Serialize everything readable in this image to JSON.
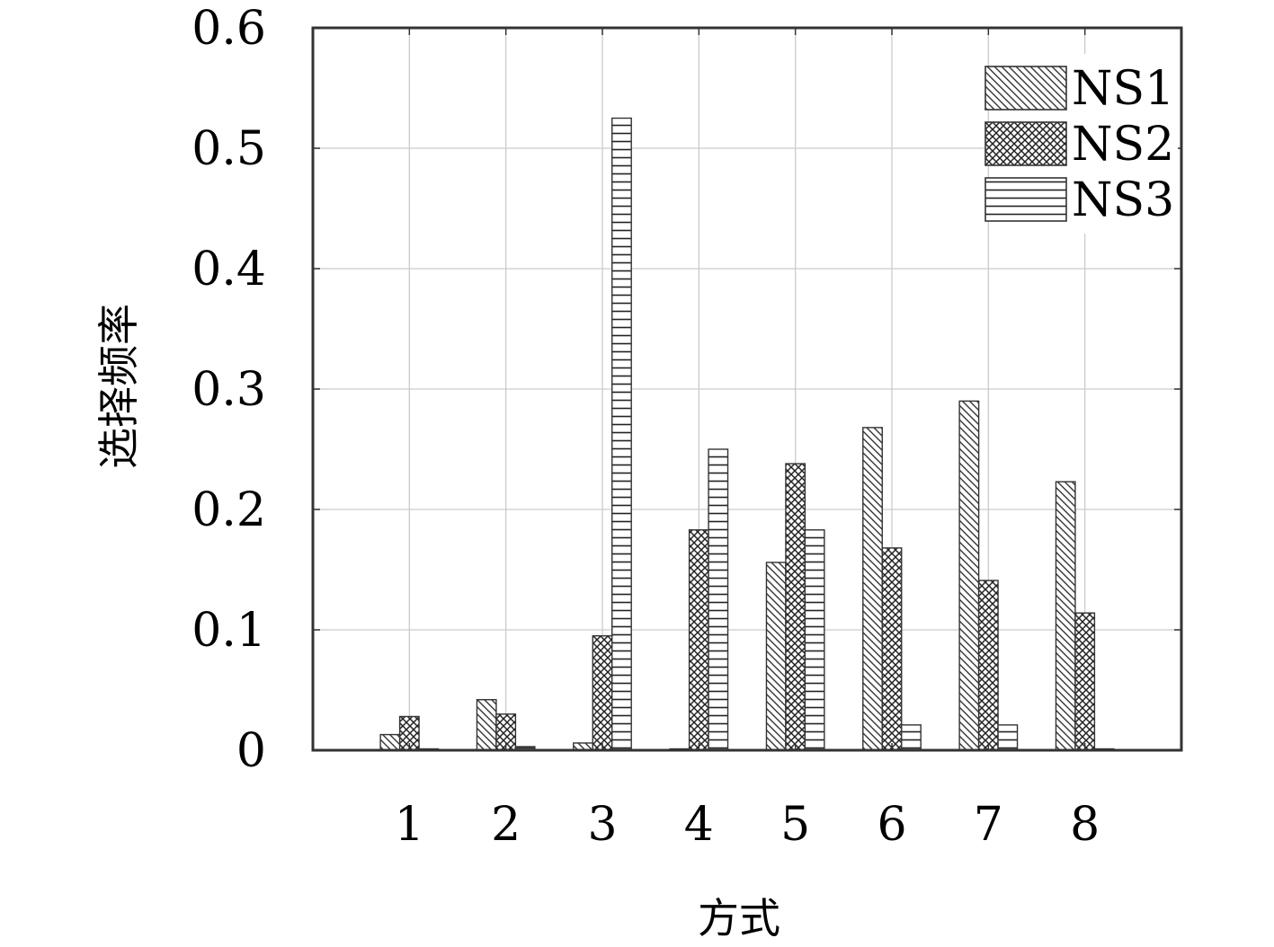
{
  "chart_data": {
    "type": "bar",
    "title": "",
    "xlabel": "方式",
    "ylabel": "选择频率",
    "categories": [
      "1",
      "2",
      "3",
      "4",
      "5",
      "6",
      "7",
      "8"
    ],
    "series": [
      {
        "name": "NS1",
        "values": [
          0.013,
          0.042,
          0.006,
          0.0,
          0.156,
          0.268,
          0.29,
          0.223
        ],
        "pattern": "diagonal"
      },
      {
        "name": "NS2",
        "values": [
          0.028,
          0.03,
          0.095,
          0.183,
          0.238,
          0.168,
          0.141,
          0.114
        ],
        "pattern": "crosshatch"
      },
      {
        "name": "NS3",
        "values": [
          0.0,
          0.003,
          0.525,
          0.25,
          0.183,
          0.021,
          0.021,
          0.0
        ],
        "pattern": "horizontal"
      }
    ],
    "ylim": [
      0,
      0.6
    ],
    "yticks": [
      "0",
      "0.1",
      "0.2",
      "0.3",
      "0.4",
      "0.5",
      "0.6"
    ],
    "xlim": [
      0,
      9
    ],
    "grid": true,
    "legend_position": "top-right",
    "colors": {
      "bar_stroke": "#333333",
      "grid": "#cccccc",
      "axis": "#333333",
      "background": "#ffffff"
    }
  }
}
